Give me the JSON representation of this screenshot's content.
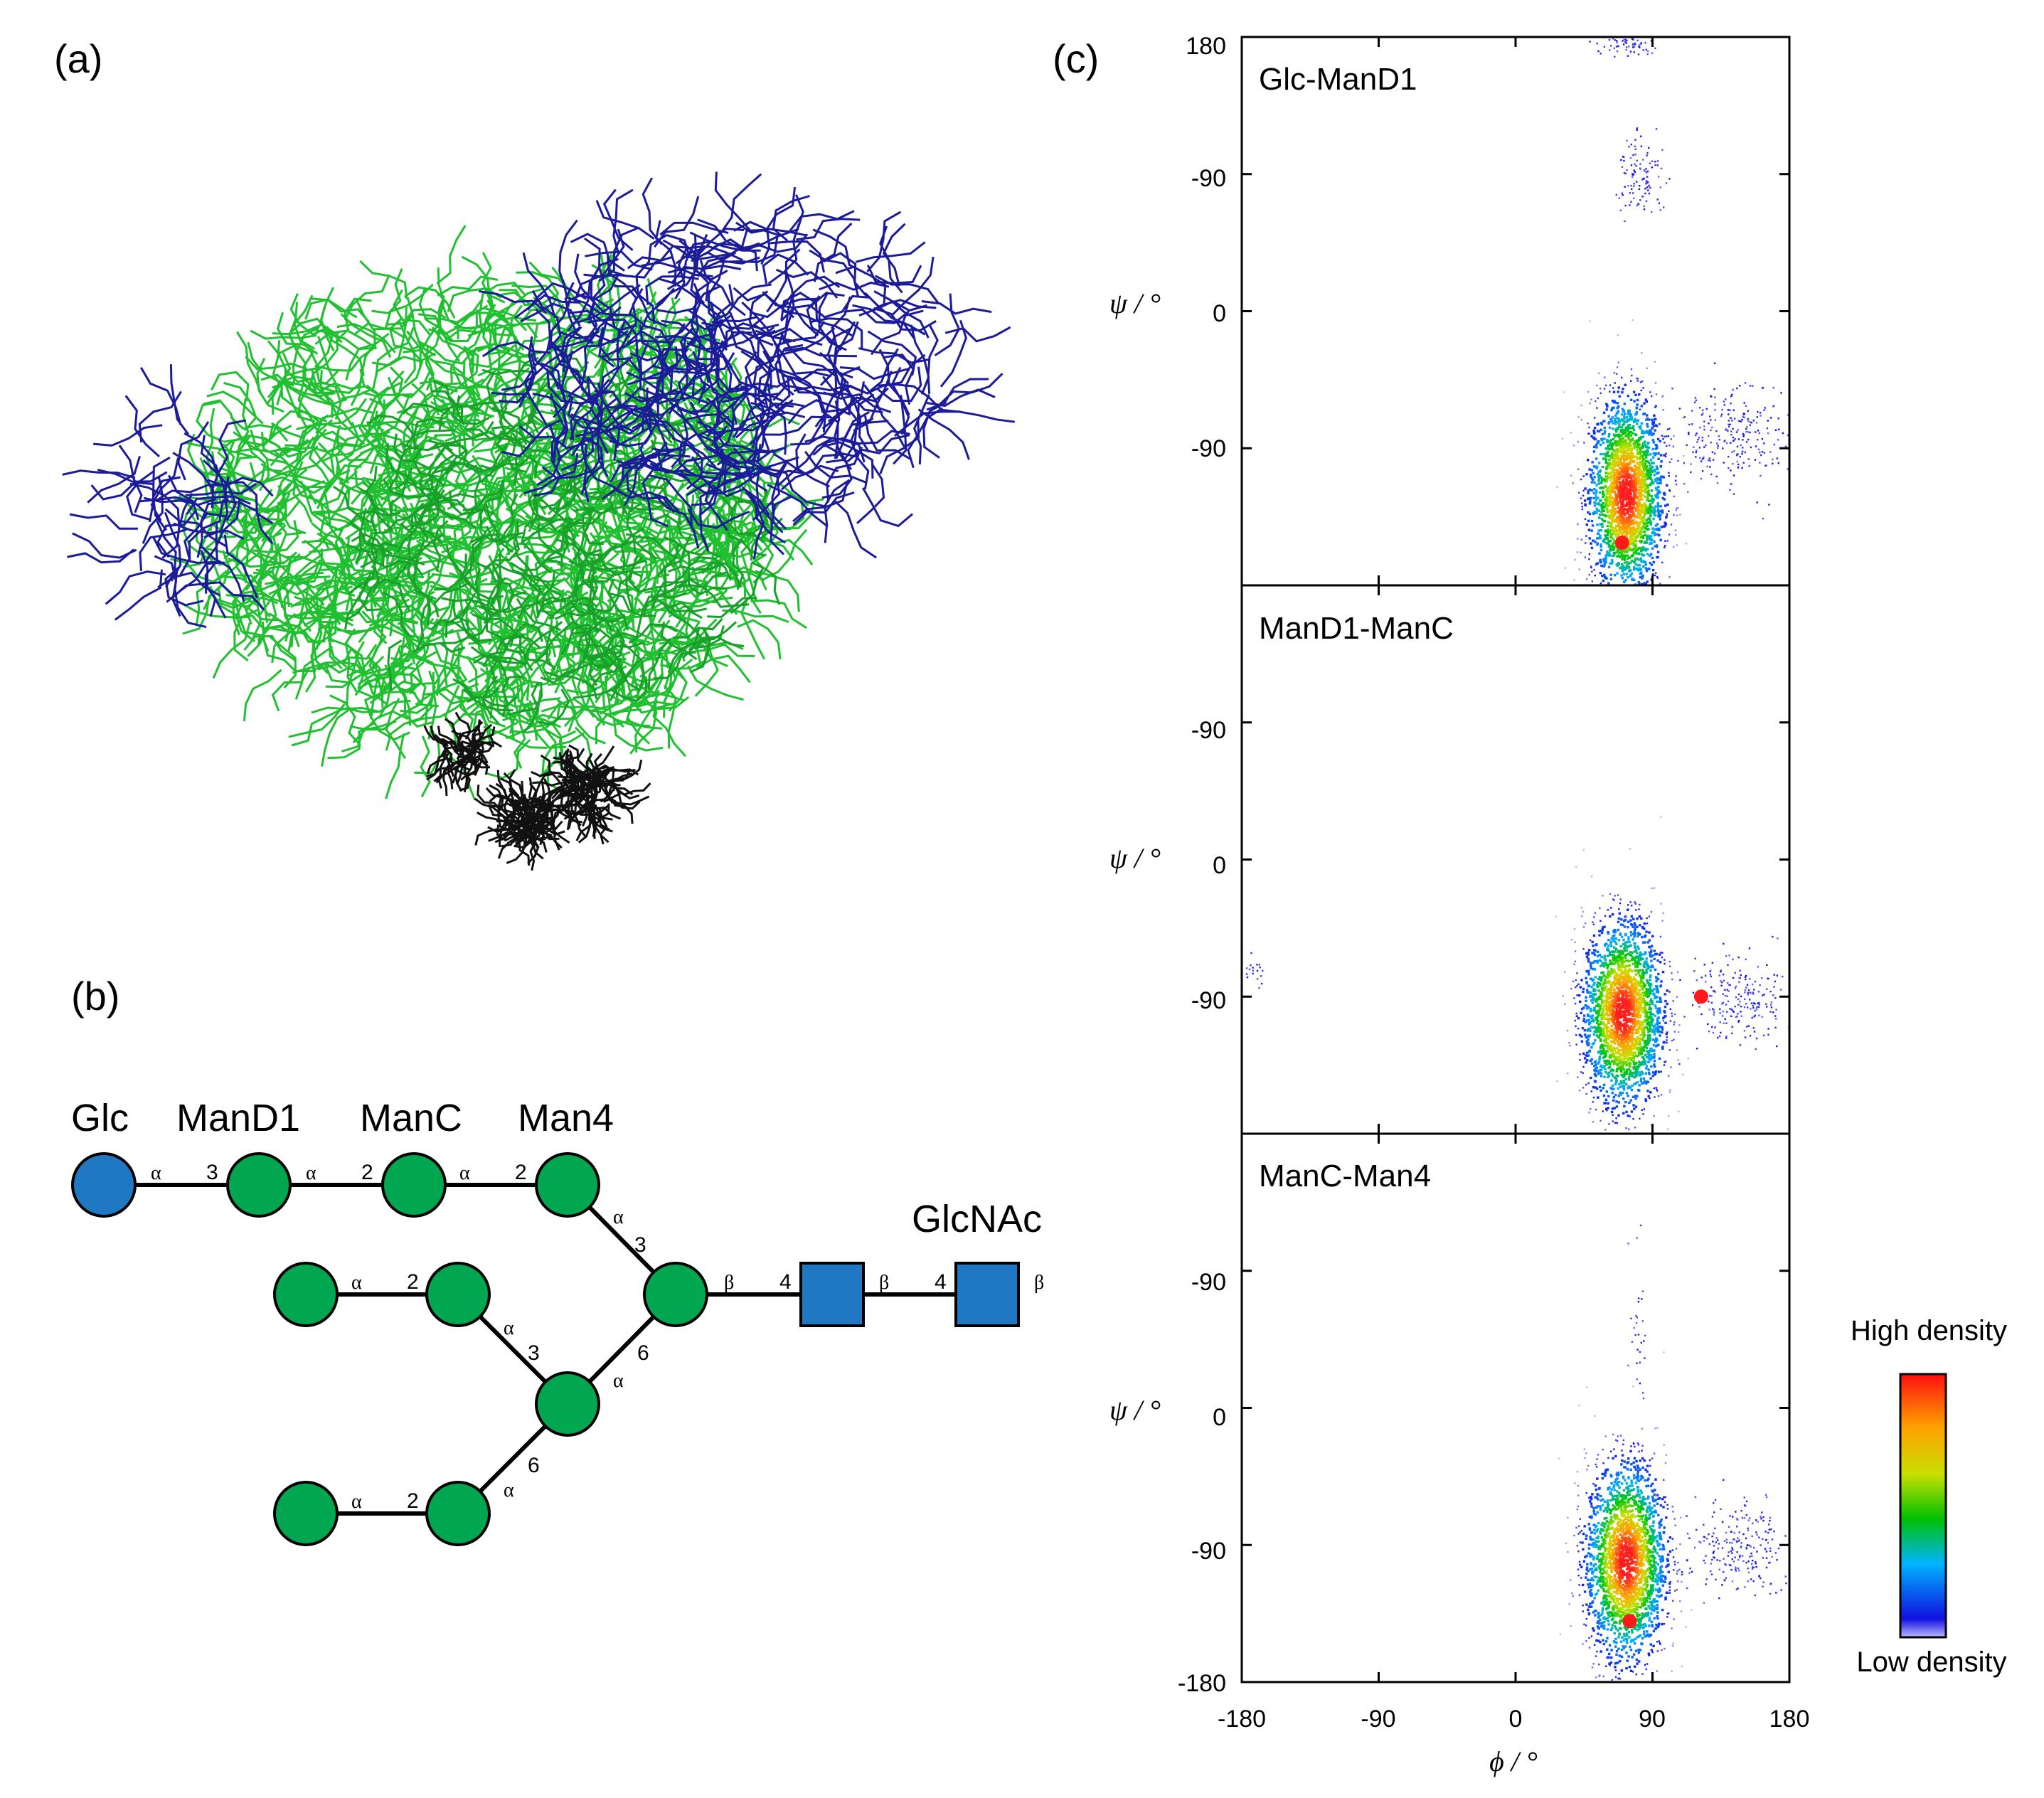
{
  "panels": {
    "a": {
      "label": "(a)"
    },
    "b": {
      "label": "(b)"
    },
    "c": {
      "label": "(c)"
    }
  },
  "glycan": {
    "residue_names": {
      "glc": "Glc",
      "mand1": "ManD1",
      "manc": "ManC",
      "man4": "Man4",
      "glcnac": "GlcNAc"
    },
    "linkages": {
      "l1": {
        "anomer": "α",
        "position": "3"
      },
      "l2": {
        "anomer": "α",
        "position": "2"
      },
      "l3": {
        "anomer": "α",
        "position": "2"
      },
      "l4": {
        "anomer": "α",
        "position": "3"
      },
      "l5": {
        "anomer": "β",
        "position": "4"
      },
      "l6": {
        "anomer": "β",
        "position": "4"
      },
      "l7": {
        "anomer": "β"
      },
      "l8": {
        "anomer": "α",
        "position": "2"
      },
      "l9": {
        "anomer": "α",
        "position": "3"
      },
      "l10": {
        "anomer": "α",
        "position": "6"
      },
      "l11": {
        "anomer": "α",
        "position": "6"
      },
      "l12": {
        "anomer": "α",
        "position": "2"
      }
    },
    "colors": {
      "glc": "#1f78c1",
      "man": "#00a650",
      "glcnac": "#1f78c1"
    }
  },
  "chart_data": {
    "type": "scatter",
    "xlabel": "ϕ / °",
    "ylabel": "ψ / °",
    "xlim": [
      -180,
      180
    ],
    "ylim": [
      -180,
      180
    ],
    "x_ticks": [
      -180,
      -90,
      0,
      90,
      180
    ],
    "y_ticks": [
      -180,
      -90,
      0,
      90,
      180
    ],
    "x_tick_labels": [
      "-180",
      "-90",
      "0",
      "90",
      "180"
    ],
    "y_tick_labels_top": [
      "180",
      "-90",
      "0",
      "-90"
    ],
    "y_tick_labels_mid": [
      "-90",
      "0",
      "-90"
    ],
    "y_tick_labels_bottom": [
      "-90",
      "0",
      "-90",
      "-180"
    ],
    "colorbar": {
      "high": "High density",
      "low": "Low density"
    },
    "plots": [
      {
        "title": "Glc-ManD1",
        "clusters": [
          {
            "phi": 72,
            "psi": -120,
            "sd_phi": 12,
            "sd_psi": 32,
            "n": 2400,
            "level": "high"
          },
          {
            "phi": 140,
            "psi": -80,
            "sd_phi": 20,
            "sd_psi": 18,
            "n": 260,
            "level": "low"
          },
          {
            "phi": 82,
            "psi": 88,
            "sd_phi": 8,
            "sd_psi": 12,
            "n": 110,
            "level": "low"
          },
          {
            "phi": 72,
            "psi": 175,
            "sd_phi": 12,
            "sd_psi": 4,
            "n": 60,
            "level": "low"
          }
        ],
        "reference_point": {
          "phi": 70,
          "psi": -152
        }
      },
      {
        "title": "ManD1-ManC",
        "clusters": [
          {
            "phi": 70,
            "psi": -100,
            "sd_phi": 13,
            "sd_psi": 30,
            "n": 2400,
            "level": "high"
          },
          {
            "phi": 148,
            "psi": -92,
            "sd_phi": 18,
            "sd_psi": 15,
            "n": 220,
            "level": "low"
          },
          {
            "phi": -172,
            "psi": -70,
            "sd_phi": 4,
            "sd_psi": 6,
            "n": 18,
            "level": "low"
          }
        ],
        "reference_point": {
          "phi": 122,
          "psi": -90
        }
      },
      {
        "title": "ManC-Man4",
        "clusters": [
          {
            "phi": 72,
            "psi": -100,
            "sd_phi": 13,
            "sd_psi": 32,
            "n": 2400,
            "level": "high"
          },
          {
            "phi": 150,
            "psi": -92,
            "sd_phi": 18,
            "sd_psi": 15,
            "n": 240,
            "level": "low"
          },
          {
            "phi": 80,
            "psi": 50,
            "sd_phi": 4,
            "sd_psi": 30,
            "n": 30,
            "level": "low"
          }
        ],
        "reference_point": {
          "phi": 75,
          "psi": -140
        }
      }
    ]
  }
}
